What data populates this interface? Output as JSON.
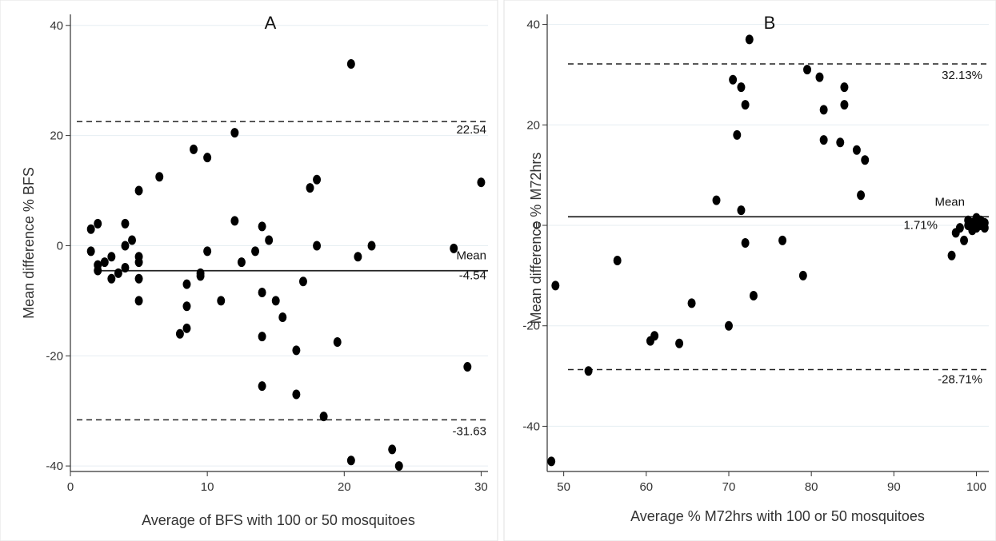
{
  "chart_data": [
    {
      "type": "scatter",
      "title": "A",
      "xlabel": "Average of BFS with 100 or 50 mosquitoes",
      "ylabel": "Mean difference % BFS",
      "xlim": [
        0,
        30.5
      ],
      "ylim": [
        -41,
        42
      ],
      "xticks": [
        0,
        10,
        20,
        30
      ],
      "yticks": [
        -40,
        -20,
        0,
        20,
        40
      ],
      "grid": "horizontal",
      "upper_limit": 22.54,
      "upper_label": "22.54",
      "mean": -4.54,
      "mean_label": "Mean",
      "mean_value_label": "-4.54",
      "lower_limit": -31.63,
      "lower_label": "-31.63",
      "points": [
        [
          1.5,
          3
        ],
        [
          1.5,
          -1
        ],
        [
          2,
          4
        ],
        [
          2,
          -3.5
        ],
        [
          2,
          -4.5
        ],
        [
          2.5,
          -3
        ],
        [
          3,
          -6
        ],
        [
          3,
          -2
        ],
        [
          3.5,
          -5
        ],
        [
          4,
          4
        ],
        [
          4,
          0
        ],
        [
          4,
          -4
        ],
        [
          4.5,
          1
        ],
        [
          5,
          10
        ],
        [
          5,
          -2
        ],
        [
          5,
          -3
        ],
        [
          5,
          -6
        ],
        [
          5,
          -10
        ],
        [
          6.5,
          12.5
        ],
        [
          8,
          -16
        ],
        [
          8.5,
          -7
        ],
        [
          8.5,
          -11
        ],
        [
          8.5,
          -15
        ],
        [
          9,
          17.5
        ],
        [
          9.5,
          -5
        ],
        [
          9.5,
          -5.5
        ],
        [
          10,
          16
        ],
        [
          10,
          -1
        ],
        [
          11,
          -10
        ],
        [
          12,
          20.5
        ],
        [
          12,
          4.5
        ],
        [
          12.5,
          -3
        ],
        [
          13.5,
          -1
        ],
        [
          14,
          -8.5
        ],
        [
          14,
          -16.5
        ],
        [
          14,
          -25.5
        ],
        [
          14,
          3.5
        ],
        [
          14.5,
          1
        ],
        [
          15,
          -10
        ],
        [
          15.5,
          -13
        ],
        [
          16.5,
          -19
        ],
        [
          16.5,
          -27
        ],
        [
          17,
          -6.5
        ],
        [
          17.5,
          10.5
        ],
        [
          18,
          12
        ],
        [
          18,
          0
        ],
        [
          18.5,
          -31
        ],
        [
          19.5,
          -17.5
        ],
        [
          20.5,
          33
        ],
        [
          20.5,
          -39
        ],
        [
          21,
          -2
        ],
        [
          22,
          0
        ],
        [
          23.5,
          -37
        ],
        [
          24,
          -40
        ],
        [
          28,
          -0.5
        ],
        [
          29,
          -22
        ],
        [
          30,
          11.5
        ]
      ]
    },
    {
      "type": "scatter",
      "title": "B",
      "xlabel": "Average % M72hrs with 100 or 50 mosquitoes",
      "ylabel": "Mean difference % M72hrs",
      "xlim": [
        48,
        101.5
      ],
      "ylim": [
        -49,
        42
      ],
      "xticks": [
        50,
        60,
        70,
        80,
        90,
        100
      ],
      "yticks": [
        -40,
        -20,
        0,
        20,
        40
      ],
      "grid": "horizontal",
      "upper_limit": 32.13,
      "upper_label": "32.13%",
      "mean": 1.71,
      "mean_label": "Mean",
      "mean_value_label": "1.71%",
      "lower_limit": -28.71,
      "lower_label": "-28.71%",
      "points": [
        [
          48.5,
          -47
        ],
        [
          49,
          -12
        ],
        [
          53,
          -29
        ],
        [
          56.5,
          -7
        ],
        [
          60.5,
          -23
        ],
        [
          61,
          -22
        ],
        [
          64,
          -23.5
        ],
        [
          65.5,
          -15.5
        ],
        [
          68.5,
          5
        ],
        [
          70,
          -20
        ],
        [
          70.5,
          29
        ],
        [
          71,
          18
        ],
        [
          71.5,
          27.5
        ],
        [
          72,
          24
        ],
        [
          71.5,
          3
        ],
        [
          72,
          -3.5
        ],
        [
          72.5,
          37
        ],
        [
          73,
          -14
        ],
        [
          76.5,
          -3
        ],
        [
          79,
          -10
        ],
        [
          79.5,
          31
        ],
        [
          81,
          29.5
        ],
        [
          81.5,
          23
        ],
        [
          81.5,
          17
        ],
        [
          83.5,
          16.5
        ],
        [
          84,
          27.5
        ],
        [
          84,
          24
        ],
        [
          85.5,
          15
        ],
        [
          86.5,
          13
        ],
        [
          86,
          6
        ],
        [
          97,
          -6
        ],
        [
          97.5,
          -1.5
        ],
        [
          98,
          -0.5
        ],
        [
          98.5,
          -3
        ],
        [
          99,
          0
        ],
        [
          99,
          1
        ],
        [
          99.5,
          -1
        ],
        [
          99.5,
          0.5
        ],
        [
          100,
          0
        ],
        [
          100,
          1.5
        ],
        [
          100,
          -0.5
        ],
        [
          100.5,
          0
        ],
        [
          100.5,
          1
        ],
        [
          101,
          -0.5
        ],
        [
          101,
          0.5
        ]
      ]
    }
  ]
}
